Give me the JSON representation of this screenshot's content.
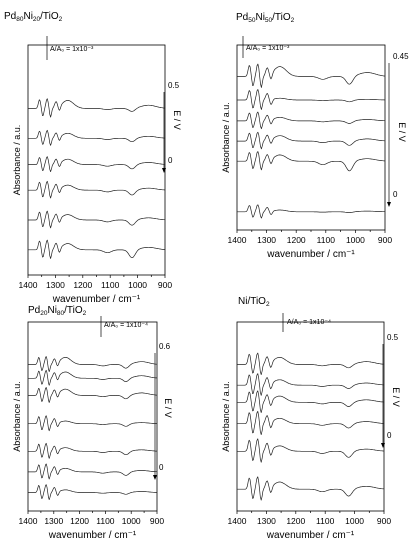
{
  "chart_data": [
    {
      "type": "line",
      "title": "Pd80Ni20/TiO2",
      "title_parts": [
        [
          "Pd",
          false
        ],
        [
          "80",
          true
        ],
        [
          "Ni",
          false
        ],
        [
          "20",
          true
        ],
        [
          "/TiO",
          false
        ],
        [
          "2",
          true
        ]
      ],
      "xlabel": "wavenumber / cm⁻¹",
      "ylabel": "Absorbance / a.u.",
      "potential_label": "E / V",
      "potential_top": "0.5",
      "potential_bottom": "0",
      "scale_bar": "A/A₀ = 1x10⁻³",
      "x_ticks": [
        "1400",
        "1300",
        "1200",
        "1100",
        "1000",
        "900"
      ],
      "xlim": [
        1400,
        900
      ],
      "series": [
        {
          "base": 0.08,
          "amp": 0.55,
          "dip": 0.45,
          "bump": 0.35,
          "seed": 1
        },
        {
          "base": 0.22,
          "amp": 0.5,
          "dip": 0.3,
          "bump": 0.3,
          "seed": 2
        },
        {
          "base": 0.36,
          "amp": 0.5,
          "dip": 0.28,
          "bump": 0.28,
          "seed": 3
        },
        {
          "base": 0.48,
          "amp": 0.45,
          "dip": 0.25,
          "bump": 0.3,
          "seed": 4
        },
        {
          "base": 0.6,
          "amp": 0.45,
          "dip": 0.2,
          "bump": 0.28,
          "seed": 5
        },
        {
          "base": 0.74,
          "amp": 0.55,
          "dip": 0.18,
          "bump": 0.45,
          "seed": 6
        }
      ]
    },
    {
      "type": "line",
      "title": "Pd50Ni50/TiO2",
      "title_parts": [
        [
          "Pd",
          false
        ],
        [
          "50",
          true
        ],
        [
          "Ni",
          false
        ],
        [
          "50",
          true
        ],
        [
          "/TiO",
          false
        ],
        [
          "2",
          true
        ]
      ],
      "xlabel": "wavenumber / cm⁻¹",
      "ylabel": "Absorbance / a.u.",
      "potential_label": "E / V",
      "potential_top": "0.45",
      "potential_bottom": "0",
      "scale_bar": "A/A₀ = 1x10⁻³",
      "x_ticks": [
        "1400",
        "1300",
        "1200",
        "1100",
        "1000",
        "900"
      ],
      "xlim": [
        1400,
        900
      ],
      "series": [
        {
          "base": 0.06,
          "amp": 0.4,
          "dip": 0.05,
          "bump": 0.1,
          "seed": 7
        },
        {
          "base": 0.36,
          "amp": 0.55,
          "dip": 0.55,
          "bump": 0.35,
          "seed": 8
        },
        {
          "base": 0.48,
          "amp": 0.5,
          "dip": 0.25,
          "bump": 0.3,
          "seed": 9
        },
        {
          "base": 0.6,
          "amp": 0.5,
          "dip": 0.15,
          "bump": 0.2,
          "seed": 10
        },
        {
          "base": 0.72,
          "amp": 0.6,
          "dip": 0.1,
          "bump": 0.1,
          "seed": 11
        },
        {
          "base": 0.86,
          "amp": 0.7,
          "dip": 0.45,
          "bump": 0.55,
          "seed": 12
        }
      ]
    },
    {
      "type": "line",
      "title": "Pd20Ni80/TiO2",
      "title_parts": [
        [
          "Pd",
          false
        ],
        [
          "20",
          true
        ],
        [
          "Ni",
          false
        ],
        [
          "80",
          true
        ],
        [
          "/TiO",
          false
        ],
        [
          "2",
          true
        ]
      ],
      "xlabel": "wavenumber / cm⁻¹",
      "ylabel": "Absorbance / a.u.",
      "potential_label": "E / V",
      "potential_top": "0.6",
      "potential_bottom": "0",
      "scale_bar": "A/A₀ = 1x10⁻⁴",
      "x_ticks": [
        "1400",
        "1300",
        "1200",
        "1100",
        "1000",
        "900"
      ],
      "xlim": [
        1400,
        900
      ],
      "series": [
        {
          "base": 0.06,
          "amp": 0.45,
          "dip": 0.1,
          "bump": 0.15,
          "seed": 13
        },
        {
          "base": 0.18,
          "amp": 0.45,
          "dip": 0.2,
          "bump": 0.2,
          "seed": 14
        },
        {
          "base": 0.3,
          "amp": 0.45,
          "dip": 0.2,
          "bump": 0.2,
          "seed": 15
        },
        {
          "base": 0.46,
          "amp": 0.45,
          "dip": 0.15,
          "bump": 0.15,
          "seed": 16
        },
        {
          "base": 0.62,
          "amp": 0.45,
          "dip": 0.2,
          "bump": 0.35,
          "seed": 17
        },
        {
          "base": 0.72,
          "amp": 0.45,
          "dip": 0.2,
          "bump": 0.35,
          "seed": 18
        },
        {
          "base": 0.8,
          "amp": 0.45,
          "dip": 0.22,
          "bump": 0.4,
          "seed": 19
        }
      ]
    },
    {
      "type": "line",
      "title": "Ni/TiO2",
      "title_parts": [
        [
          "Ni/TiO",
          false
        ],
        [
          "2",
          true
        ]
      ],
      "xlabel": "wavenumber / cm⁻¹",
      "ylabel": "Absorbance / a.u.",
      "potential_label": "E / V",
      "potential_top": "0.5",
      "potential_bottom": "0",
      "scale_bar": "A/A₀ = 1x10⁻⁴",
      "x_ticks": [
        "1400",
        "1300",
        "1200",
        "1100",
        "1000",
        "900"
      ],
      "xlim": [
        1400,
        900
      ],
      "series": [
        {
          "base": 0.08,
          "amp": 0.7,
          "dip": 0.4,
          "bump": 0.4,
          "seed": 20
        },
        {
          "base": 0.3,
          "amp": 0.7,
          "dip": 0.35,
          "bump": 0.3,
          "seed": 21
        },
        {
          "base": 0.46,
          "amp": 0.7,
          "dip": 0.25,
          "bump": 0.3,
          "seed": 22
        },
        {
          "base": 0.58,
          "amp": 0.65,
          "dip": 0.25,
          "bump": 0.35,
          "seed": 23
        },
        {
          "base": 0.68,
          "amp": 0.65,
          "dip": 0.2,
          "bump": 0.3,
          "seed": 24
        },
        {
          "base": 0.8,
          "amp": 0.65,
          "dip": 0.2,
          "bump": 0.4,
          "seed": 25
        }
      ]
    }
  ]
}
